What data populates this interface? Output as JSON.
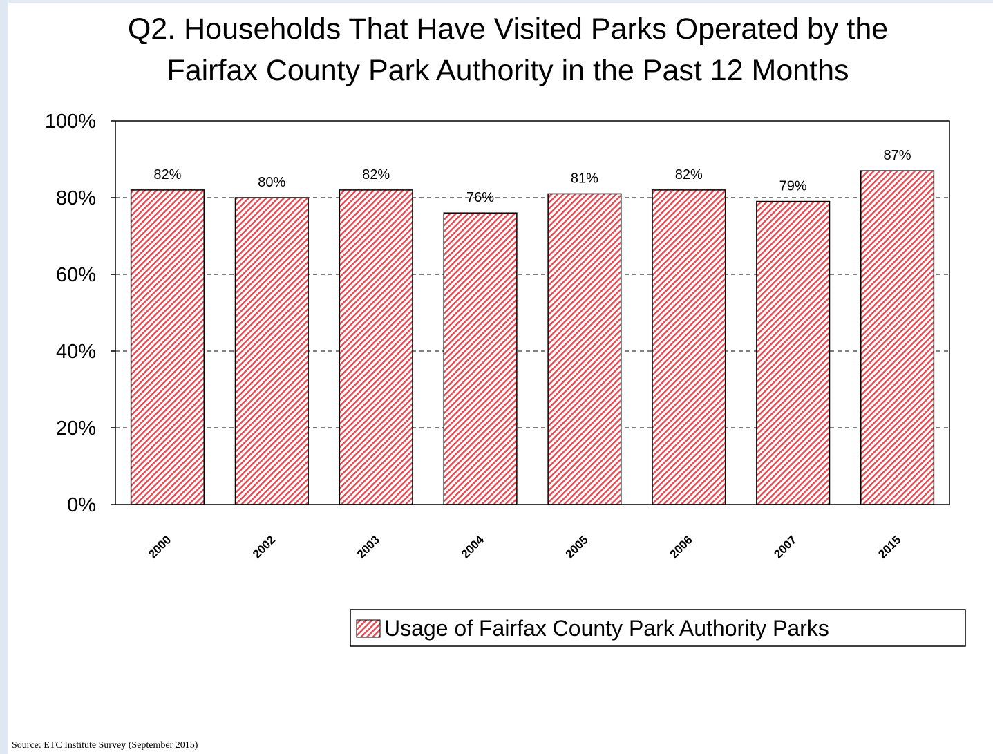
{
  "chart_data": {
    "type": "bar",
    "title_lines": [
      "Q2. Households That Have Visited Parks Operated by the",
      "Fairfax County Park Authority in the Past 12 Months"
    ],
    "categories": [
      "2000",
      "2002",
      "2003",
      "2004",
      "2005",
      "2006",
      "2007",
      "2015"
    ],
    "series": [
      {
        "name": "Usage of Fairfax County Park Authority Parks",
        "values": [
          82,
          80,
          82,
          76,
          81,
          82,
          79,
          87
        ],
        "labels": [
          "82%",
          "80%",
          "82%",
          "76%",
          "81%",
          "82%",
          "79%",
          "87%"
        ]
      }
    ],
    "yticks": [
      "0%",
      "20%",
      "40%",
      "60%",
      "80%",
      "100%"
    ],
    "ylim": [
      0,
      100
    ],
    "grid": "horizontal dashed",
    "legend_position": "bottom-right",
    "bar_color": "#e8474f",
    "bar_pattern": "diagonal-hatch"
  },
  "source": "Source:  ETC Institute Survey (September 2015)"
}
